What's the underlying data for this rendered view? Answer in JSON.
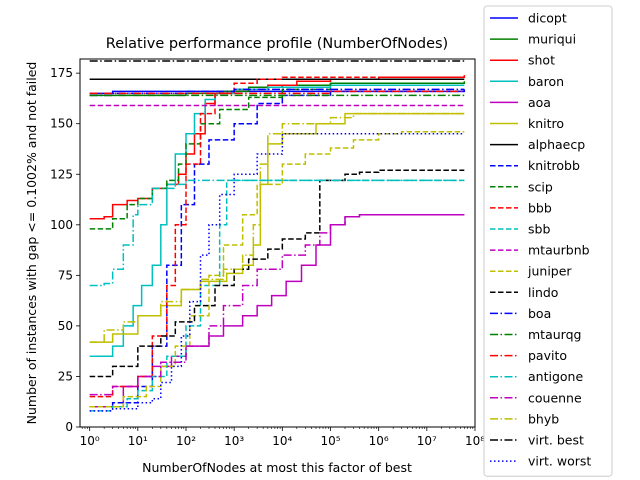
{
  "chart_data": {
    "type": "line",
    "title": "Relative performance profile (NumberOfNodes)",
    "xlabel": "NumberOfNodes at most this factor of best",
    "ylabel": "Number of instances with gap <= 0.1002% and not failed",
    "x_scale": "log",
    "xlim": [
      0.63,
      100000000
    ],
    "ylim": [
      0,
      182
    ],
    "x_ticks": [
      {
        "value": 1,
        "label": "10⁰"
      },
      {
        "value": 10,
        "label": "10¹"
      },
      {
        "value": 100,
        "label": "10²"
      },
      {
        "value": 1000,
        "label": "10³"
      },
      {
        "value": 10000,
        "label": "10⁴"
      },
      {
        "value": 100000,
        "label": "10⁵"
      },
      {
        "value": 1000000,
        "label": "10⁶"
      },
      {
        "value": 10000000,
        "label": "10⁷"
      },
      {
        "value": 100000000,
        "label": "10⁸"
      }
    ],
    "y_ticks": [
      {
        "value": 0,
        "label": "0"
      },
      {
        "value": 25,
        "label": "25"
      },
      {
        "value": 50,
        "label": "50"
      },
      {
        "value": 75,
        "label": "75"
      },
      {
        "value": 100,
        "label": "100"
      },
      {
        "value": 125,
        "label": "125"
      },
      {
        "value": 150,
        "label": "150"
      },
      {
        "value": 175,
        "label": "175"
      }
    ],
    "grid": false,
    "legend_position": "outside-right",
    "series": [
      {
        "name": "dicopt",
        "color": "#0000ff",
        "dash": "solid",
        "points": [
          [
            1,
            165
          ],
          [
            3,
            166
          ],
          [
            60000000,
            166
          ]
        ]
      },
      {
        "name": "muriqui",
        "color": "#008000",
        "dash": "solid",
        "points": [
          [
            1,
            164
          ],
          [
            100,
            165
          ],
          [
            500,
            166
          ],
          [
            2000,
            168
          ],
          [
            10000,
            169
          ],
          [
            100000,
            170
          ],
          [
            60000000,
            170
          ]
        ]
      },
      {
        "name": "shot",
        "color": "#ff0000",
        "dash": "solid",
        "points": [
          [
            1,
            103
          ],
          [
            2,
            104
          ],
          [
            3,
            110
          ],
          [
            6,
            112
          ],
          [
            10,
            113
          ],
          [
            20,
            118
          ],
          [
            40,
            120
          ],
          [
            70,
            125
          ],
          [
            100,
            135
          ],
          [
            150,
            145
          ],
          [
            250,
            160
          ],
          [
            400,
            165
          ],
          [
            1000,
            167
          ],
          [
            5000,
            169
          ],
          [
            20000,
            171
          ],
          [
            100000,
            172
          ],
          [
            1000000,
            173
          ],
          [
            60000000,
            174
          ]
        ]
      },
      {
        "name": "baron",
        "color": "#00bfbf",
        "dash": "solid",
        "points": [
          [
            1,
            35
          ],
          [
            3,
            40
          ],
          [
            5,
            50
          ],
          [
            8,
            60
          ],
          [
            12,
            70
          ],
          [
            20,
            80
          ],
          [
            30,
            100
          ],
          [
            40,
            120
          ],
          [
            60,
            135
          ],
          [
            100,
            145
          ],
          [
            150,
            155
          ],
          [
            250,
            162
          ],
          [
            400,
            165
          ],
          [
            1000,
            167
          ],
          [
            5000,
            168
          ],
          [
            100000,
            169
          ],
          [
            60000000,
            169
          ]
        ]
      },
      {
        "name": "aoa",
        "color": "#bf00bf",
        "dash": "solid",
        "points": [
          [
            1,
            10
          ],
          [
            5,
            20
          ],
          [
            10,
            25
          ],
          [
            20,
            30
          ],
          [
            50,
            35
          ],
          [
            100,
            40
          ],
          [
            300,
            45
          ],
          [
            600,
            50
          ],
          [
            1500,
            55
          ],
          [
            3000,
            60
          ],
          [
            6000,
            65
          ],
          [
            12000,
            72
          ],
          [
            25000,
            80
          ],
          [
            50000,
            90
          ],
          [
            100000,
            100
          ],
          [
            200000,
            104
          ],
          [
            400000,
            105
          ],
          [
            60000000,
            105
          ]
        ]
      },
      {
        "name": "knitro",
        "color": "#bfbf00",
        "dash": "solid",
        "points": [
          [
            1,
            42
          ],
          [
            3,
            46
          ],
          [
            10,
            55
          ],
          [
            30,
            60
          ],
          [
            80,
            68
          ],
          [
            200,
            72
          ],
          [
            700,
            76
          ],
          [
            1500,
            80
          ],
          [
            2500,
            90
          ],
          [
            3500,
            120
          ],
          [
            5000,
            140
          ],
          [
            10000,
            145
          ],
          [
            50000,
            150
          ],
          [
            200000,
            155
          ],
          [
            60000000,
            155
          ]
        ]
      },
      {
        "name": "alphaecp",
        "color": "#000000",
        "dash": "solid",
        "points": [
          [
            1,
            172
          ],
          [
            60000000,
            172
          ]
        ]
      },
      {
        "name": "knitrobb",
        "color": "#0000ff",
        "dash": "dashed",
        "points": [
          [
            1,
            10
          ],
          [
            3,
            12
          ],
          [
            10,
            20
          ],
          [
            20,
            40
          ],
          [
            40,
            80
          ],
          [
            80,
            110
          ],
          [
            150,
            130
          ],
          [
            300,
            142
          ],
          [
            1000,
            150
          ],
          [
            3000,
            160
          ],
          [
            10000,
            164
          ],
          [
            100000,
            166
          ],
          [
            60000000,
            167
          ]
        ]
      },
      {
        "name": "scip",
        "color": "#008000",
        "dash": "dashed",
        "points": [
          [
            1,
            98
          ],
          [
            3,
            103
          ],
          [
            6,
            110
          ],
          [
            10,
            113
          ],
          [
            20,
            118
          ],
          [
            40,
            122
          ],
          [
            70,
            130
          ],
          [
            100,
            140
          ],
          [
            200,
            150
          ],
          [
            500,
            157
          ],
          [
            2000,
            163
          ],
          [
            10000,
            167
          ],
          [
            100000,
            170
          ],
          [
            60000000,
            171
          ]
        ]
      },
      {
        "name": "bbb",
        "color": "#ff0000",
        "dash": "dashed",
        "points": [
          [
            1,
            15
          ],
          [
            3,
            20
          ],
          [
            10,
            25
          ],
          [
            20,
            45
          ],
          [
            40,
            70
          ],
          [
            60,
            100
          ],
          [
            100,
            130
          ],
          [
            200,
            155
          ],
          [
            400,
            165
          ],
          [
            1000,
            170
          ],
          [
            3000,
            172
          ],
          [
            10000,
            173
          ],
          [
            60000000,
            173
          ]
        ]
      },
      {
        "name": "sbb",
        "color": "#00bfbf",
        "dash": "dashed",
        "points": [
          [
            1,
            8
          ],
          [
            3,
            10
          ],
          [
            6,
            14
          ],
          [
            10,
            18
          ],
          [
            20,
            25
          ],
          [
            40,
            35
          ],
          [
            100,
            50
          ],
          [
            200,
            70
          ],
          [
            500,
            100
          ],
          [
            700,
            122
          ],
          [
            60000000,
            122
          ]
        ]
      },
      {
        "name": "mtaurbnb",
        "color": "#bf00bf",
        "dash": "dashed",
        "points": [
          [
            1,
            159
          ],
          [
            60000000,
            159
          ]
        ]
      },
      {
        "name": "juniper",
        "color": "#bfbf00",
        "dash": "dashed",
        "points": [
          [
            1,
            10
          ],
          [
            5,
            15
          ],
          [
            15,
            20
          ],
          [
            30,
            30
          ],
          [
            60,
            40
          ],
          [
            120,
            55
          ],
          [
            300,
            75
          ],
          [
            600,
            90
          ],
          [
            1500,
            105
          ],
          [
            3000,
            120
          ],
          [
            10000,
            130
          ],
          [
            30000,
            135
          ],
          [
            100000,
            138
          ],
          [
            300000,
            142
          ],
          [
            1000000,
            145
          ],
          [
            3000000,
            146
          ],
          [
            60000000,
            146
          ]
        ]
      },
      {
        "name": "lindo",
        "color": "#000000",
        "dash": "dashed",
        "points": [
          [
            1,
            25
          ],
          [
            3,
            30
          ],
          [
            10,
            40
          ],
          [
            30,
            45
          ],
          [
            60,
            52
          ],
          [
            150,
            60
          ],
          [
            400,
            70
          ],
          [
            1000,
            78
          ],
          [
            2000,
            83
          ],
          [
            5000,
            88
          ],
          [
            10000,
            93
          ],
          [
            30000,
            96
          ],
          [
            60000,
            97
          ],
          [
            60000,
            122
          ],
          [
            200000,
            125
          ],
          [
            400000,
            126
          ],
          [
            1000000,
            127
          ],
          [
            60000000,
            127
          ]
        ]
      },
      {
        "name": "boa",
        "color": "#0000ff",
        "dash": "dashdot",
        "points": [
          [
            1,
            164
          ],
          [
            3,
            165
          ],
          [
            100,
            166
          ],
          [
            1000,
            167
          ],
          [
            60000000,
            167
          ]
        ]
      },
      {
        "name": "mtaurqg",
        "color": "#008000",
        "dash": "dashdot",
        "points": [
          [
            1,
            164
          ],
          [
            60000000,
            164
          ]
        ]
      },
      {
        "name": "pavito",
        "color": "#ff0000",
        "dash": "dashdot",
        "points": [
          [
            1,
            165
          ],
          [
            100000,
            166
          ],
          [
            60000000,
            166
          ]
        ]
      },
      {
        "name": "antigone",
        "color": "#00bfbf",
        "dash": "dashdot",
        "points": [
          [
            1,
            70
          ],
          [
            2,
            71
          ],
          [
            3,
            78
          ],
          [
            5,
            90
          ],
          [
            8,
            105
          ],
          [
            10,
            110
          ],
          [
            20,
            118
          ],
          [
            60,
            120
          ],
          [
            100,
            122
          ],
          [
            60000000,
            122
          ]
        ]
      },
      {
        "name": "couenne",
        "color": "#bf00bf",
        "dash": "dashdot",
        "points": [
          [
            1,
            16
          ],
          [
            3,
            20
          ],
          [
            10,
            25
          ],
          [
            30,
            32
          ],
          [
            100,
            40
          ],
          [
            300,
            50
          ],
          [
            600,
            60
          ],
          [
            1500,
            70
          ],
          [
            3000,
            78
          ],
          [
            10000,
            85
          ],
          [
            30000,
            90
          ],
          [
            60000,
            96
          ],
          [
            100000,
            100
          ],
          [
            200000,
            104
          ],
          [
            400000,
            105
          ],
          [
            60000000,
            105
          ]
        ]
      },
      {
        "name": "bhyb",
        "color": "#bfbf00",
        "dash": "dashdot",
        "points": [
          [
            1,
            42
          ],
          [
            2,
            48
          ],
          [
            5,
            52
          ],
          [
            10,
            55
          ],
          [
            30,
            62
          ],
          [
            80,
            68
          ],
          [
            200,
            73
          ],
          [
            600,
            78
          ],
          [
            1500,
            85
          ],
          [
            2500,
            100
          ],
          [
            3500,
            130
          ],
          [
            5000,
            145
          ],
          [
            10000,
            150
          ],
          [
            100000,
            153
          ],
          [
            300000,
            155
          ],
          [
            60000000,
            155
          ]
        ]
      },
      {
        "name": "virt. best",
        "color": "#000000",
        "dash": "dashdot",
        "points": [
          [
            1,
            181
          ],
          [
            60000000,
            181
          ]
        ]
      },
      {
        "name": "virt. worst",
        "color": "#0000ff",
        "dash": "dotted",
        "points": [
          [
            1,
            8
          ],
          [
            3,
            9
          ],
          [
            10,
            12
          ],
          [
            20,
            14
          ],
          [
            30,
            22
          ],
          [
            50,
            30
          ],
          [
            80,
            45
          ],
          [
            120,
            62
          ],
          [
            200,
            85
          ],
          [
            300,
            100
          ],
          [
            500,
            115
          ],
          [
            1000,
            125
          ],
          [
            3000,
            135
          ],
          [
            10000,
            145
          ],
          [
            60000000,
            145
          ]
        ]
      }
    ]
  }
}
